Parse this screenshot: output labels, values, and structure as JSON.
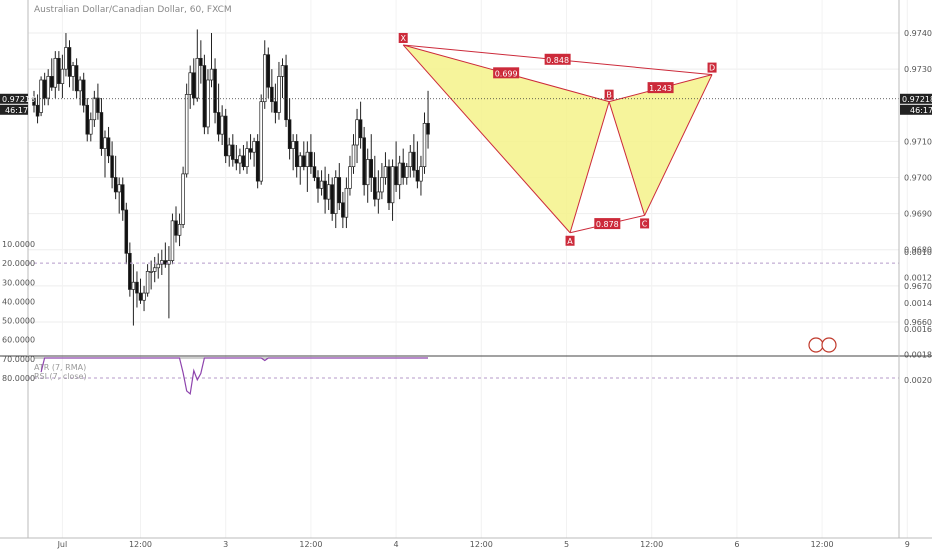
{
  "chart_data": {
    "type": "candlestick",
    "title": "Australian Dollar/Canadian Dollar, 60, FXCM",
    "last_price": "0.97218",
    "countdown": "46:17",
    "price_axis": {
      "range": [
        0.9655,
        0.9745
      ],
      "ticks": [
        "0.97400",
        "0.97300",
        "0.97100",
        "0.97000",
        "0.96900",
        "0.96800",
        "0.96700",
        "0.96600"
      ]
    },
    "time_axis": {
      "labels": [
        {
          "text": "Jul",
          "bar": 8
        },
        {
          "text": "12:00",
          "bar": 30
        },
        {
          "text": "3",
          "bar": 54
        },
        {
          "text": "12:00",
          "bar": 78
        },
        {
          "text": "4",
          "bar": 102
        },
        {
          "text": "12:00",
          "bar": 126
        },
        {
          "text": "5",
          "bar": 150
        },
        {
          "text": "12:00",
          "bar": 174
        },
        {
          "text": "6",
          "bar": 198
        },
        {
          "text": "12:00",
          "bar": 222
        },
        {
          "text": "9",
          "bar": 246
        }
      ]
    },
    "candles": [
      [
        0.9722,
        0.9724,
        0.9718,
        0.972
      ],
      [
        0.972,
        0.9723,
        0.9715,
        0.9717
      ],
      [
        0.9718,
        0.9728,
        0.9717,
        0.9727
      ],
      [
        0.9727,
        0.9729,
        0.972,
        0.9722
      ],
      [
        0.9722,
        0.973,
        0.972,
        0.9728
      ],
      [
        0.9728,
        0.9733,
        0.9724,
        0.9725
      ],
      [
        0.9725,
        0.9735,
        0.9722,
        0.9733
      ],
      [
        0.9733,
        0.9735,
        0.9724,
        0.9726
      ],
      [
        0.9726,
        0.9734,
        0.9722,
        0.973
      ],
      [
        0.973,
        0.974,
        0.9728,
        0.9736
      ],
      [
        0.9736,
        0.9738,
        0.9725,
        0.9728
      ],
      [
        0.9728,
        0.9732,
        0.9724,
        0.9731
      ],
      [
        0.9731,
        0.9733,
        0.9722,
        0.9724
      ],
      [
        0.9724,
        0.9728,
        0.972,
        0.9727
      ],
      [
        0.9727,
        0.9729,
        0.9718,
        0.972
      ],
      [
        0.972,
        0.9722,
        0.971,
        0.9712
      ],
      [
        0.9712,
        0.9718,
        0.971,
        0.9716
      ],
      [
        0.9716,
        0.9724,
        0.9714,
        0.9722
      ],
      [
        0.9722,
        0.9726,
        0.9716,
        0.9718
      ],
      [
        0.9718,
        0.9722,
        0.9706,
        0.9708
      ],
      [
        0.9708,
        0.9713,
        0.97,
        0.9711
      ],
      [
        0.9711,
        0.9714,
        0.9704,
        0.9706
      ],
      [
        0.9706,
        0.971,
        0.9697,
        0.97
      ],
      [
        0.97,
        0.9706,
        0.9694,
        0.9696
      ],
      [
        0.9696,
        0.97,
        0.969,
        0.9698
      ],
      [
        0.9698,
        0.97,
        0.9688,
        0.9691
      ],
      [
        0.9691,
        0.9693,
        0.9676,
        0.9679
      ],
      [
        0.9679,
        0.9682,
        0.9667,
        0.9669
      ],
      [
        0.9669,
        0.9676,
        0.9659,
        0.9671
      ],
      [
        0.9671,
        0.9674,
        0.9664,
        0.9668
      ],
      [
        0.9668,
        0.9672,
        0.9665,
        0.9666
      ],
      [
        0.9666,
        0.967,
        0.9663,
        0.9668
      ],
      [
        0.9668,
        0.9676,
        0.9667,
        0.9674
      ],
      [
        0.9674,
        0.9677,
        0.9669,
        0.9674
      ],
      [
        0.9674,
        0.9678,
        0.9671,
        0.9675
      ],
      [
        0.9675,
        0.9679,
        0.9672,
        0.9676
      ],
      [
        0.9676,
        0.968,
        0.9673,
        0.9677
      ],
      [
        0.9677,
        0.9682,
        0.9675,
        0.9676
      ],
      [
        0.9676,
        0.9681,
        0.9661,
        0.9677
      ],
      [
        0.9677,
        0.969,
        0.9676,
        0.9688
      ],
      [
        0.9688,
        0.9692,
        0.9682,
        0.9684
      ],
      [
        0.9684,
        0.969,
        0.9681,
        0.9687
      ],
      [
        0.9687,
        0.9703,
        0.9686,
        0.9701
      ],
      [
        0.9701,
        0.9726,
        0.97,
        0.9723
      ],
      [
        0.9723,
        0.9731,
        0.9719,
        0.9729
      ],
      [
        0.9729,
        0.9733,
        0.972,
        0.9722
      ],
      [
        0.9722,
        0.9741,
        0.9721,
        0.9733
      ],
      [
        0.9733,
        0.9738,
        0.9726,
        0.9731
      ],
      [
        0.9731,
        0.9734,
        0.9712,
        0.9714
      ],
      [
        0.9714,
        0.973,
        0.9712,
        0.9727
      ],
      [
        0.9727,
        0.974,
        0.9725,
        0.973
      ],
      [
        0.973,
        0.9733,
        0.9715,
        0.9718
      ],
      [
        0.9718,
        0.9726,
        0.971,
        0.9712
      ],
      [
        0.9712,
        0.972,
        0.9709,
        0.9717
      ],
      [
        0.9717,
        0.9719,
        0.9704,
        0.9706
      ],
      [
        0.9706,
        0.9711,
        0.9703,
        0.9709
      ],
      [
        0.9709,
        0.9712,
        0.9703,
        0.9705
      ],
      [
        0.9705,
        0.9709,
        0.9702,
        0.9704
      ],
      [
        0.9704,
        0.9708,
        0.9701,
        0.9706
      ],
      [
        0.9706,
        0.9709,
        0.9702,
        0.9703
      ],
      [
        0.9703,
        0.971,
        0.9701,
        0.9708
      ],
      [
        0.9708,
        0.9712,
        0.9705,
        0.9707
      ],
      [
        0.9707,
        0.9711,
        0.9703,
        0.971
      ],
      [
        0.971,
        0.9712,
        0.9697,
        0.9699
      ],
      [
        0.9699,
        0.9723,
        0.9698,
        0.9721
      ],
      [
        0.9721,
        0.9738,
        0.9719,
        0.9734
      ],
      [
        0.9734,
        0.9736,
        0.9722,
        0.9725
      ],
      [
        0.9725,
        0.973,
        0.9718,
        0.9721
      ],
      [
        0.9721,
        0.9726,
        0.9715,
        0.9718
      ],
      [
        0.9718,
        0.9732,
        0.9716,
        0.9728
      ],
      [
        0.9728,
        0.9733,
        0.9722,
        0.9731
      ],
      [
        0.9731,
        0.9734,
        0.9714,
        0.9716
      ],
      [
        0.9716,
        0.9722,
        0.9705,
        0.9708
      ],
      [
        0.9708,
        0.9712,
        0.9702,
        0.971
      ],
      [
        0.971,
        0.9712,
        0.97,
        0.9703
      ],
      [
        0.9703,
        0.9707,
        0.9698,
        0.9706
      ],
      [
        0.9706,
        0.971,
        0.9702,
        0.9703
      ],
      [
        0.9703,
        0.971,
        0.9696,
        0.9707
      ],
      [
        0.9707,
        0.9712,
        0.9701,
        0.9703
      ],
      [
        0.9703,
        0.9707,
        0.9699,
        0.97
      ],
      [
        0.97,
        0.9702,
        0.9693,
        0.9697
      ],
      [
        0.9697,
        0.9702,
        0.9695,
        0.9699
      ],
      [
        0.9699,
        0.9703,
        0.969,
        0.9694
      ],
      [
        0.9694,
        0.9701,
        0.9691,
        0.9698
      ],
      [
        0.9698,
        0.97,
        0.9688,
        0.969
      ],
      [
        0.969,
        0.9702,
        0.9686,
        0.97
      ],
      [
        0.97,
        0.9704,
        0.9691,
        0.9693
      ],
      [
        0.9693,
        0.9696,
        0.9686,
        0.9689
      ],
      [
        0.9689,
        0.97,
        0.9686,
        0.9697
      ],
      [
        0.9697,
        0.9706,
        0.9695,
        0.9703
      ],
      [
        0.9703,
        0.9712,
        0.9701,
        0.9709
      ],
      [
        0.9709,
        0.9719,
        0.9704,
        0.9716
      ],
      [
        0.9716,
        0.9721,
        0.9708,
        0.9711
      ],
      [
        0.9711,
        0.9714,
        0.9695,
        0.9698
      ],
      [
        0.9698,
        0.9708,
        0.9693,
        0.9705
      ],
      [
        0.9705,
        0.9712,
        0.9696,
        0.97
      ],
      [
        0.97,
        0.9706,
        0.9692,
        0.9694
      ],
      [
        0.9694,
        0.9702,
        0.969,
        0.9696
      ],
      [
        0.9696,
        0.9704,
        0.9694,
        0.97
      ],
      [
        0.97,
        0.9707,
        0.9698,
        0.9703
      ],
      [
        0.9703,
        0.9705,
        0.9691,
        0.9693
      ],
      [
        0.9693,
        0.9705,
        0.9688,
        0.9703
      ],
      [
        0.9703,
        0.971,
        0.9696,
        0.9698
      ],
      [
        0.9698,
        0.9706,
        0.9694,
        0.9704
      ],
      [
        0.9704,
        0.9708,
        0.9698,
        0.97
      ],
      [
        0.97,
        0.9704,
        0.9698,
        0.9703
      ],
      [
        0.9703,
        0.9709,
        0.97,
        0.9707
      ],
      [
        0.9707,
        0.9712,
        0.97,
        0.9702
      ],
      [
        0.9702,
        0.971,
        0.9697,
        0.9699
      ],
      [
        0.9699,
        0.9706,
        0.9695,
        0.9703
      ],
      [
        0.9703,
        0.9718,
        0.9701,
        0.9715
      ],
      [
        0.9715,
        0.9724,
        0.9708,
        0.9712
      ]
    ],
    "harmonic_pattern": {
      "points": [
        {
          "label": "X",
          "bar": 104,
          "price": 0.97367
        },
        {
          "label": "A",
          "bar": 151,
          "price": 0.96847
        },
        {
          "label": "B",
          "bar": 162,
          "price": 0.9721
        },
        {
          "label": "C",
          "bar": 172,
          "price": 0.96895
        },
        {
          "label": "D",
          "bar": 191,
          "price": 0.97285
        }
      ],
      "ratios": [
        {
          "text": "0.699",
          "from": "X",
          "to": "B"
        },
        {
          "text": "0.848",
          "from": "X",
          "to": "D"
        },
        {
          "text": "1.243",
          "from": "B",
          "to": "D"
        },
        {
          "text": "0.878",
          "from": "A",
          "to": "C"
        }
      ],
      "color": "#cc2a3a",
      "fill": "#f5f28a"
    },
    "indicator_pane": {
      "legend": [
        "ATR (7, RMA)",
        "RSI (7, close)"
      ],
      "left_axis_ticks": [
        "80.0000",
        "70.0000",
        "60.0000",
        "50.0000",
        "40.0000",
        "30.0000",
        "20.0000",
        "10.0000"
      ],
      "right_axis_ticks": [
        "0.0020",
        "0.0018",
        "0.0016",
        "0.0014",
        "0.0012",
        "0.0010"
      ],
      "rsi_band": [
        80,
        20
      ],
      "rsi_color": "#8e44ad",
      "atr_color": "#9e9e9e",
      "band_fill": "#e9dcf3"
    }
  }
}
